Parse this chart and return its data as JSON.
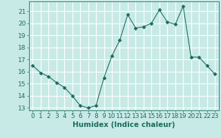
{
  "x": [
    0,
    1,
    2,
    3,
    4,
    5,
    6,
    7,
    8,
    9,
    10,
    11,
    12,
    13,
    14,
    15,
    16,
    17,
    18,
    19,
    20,
    21,
    22,
    23
  ],
  "y": [
    16.5,
    15.9,
    15.6,
    15.1,
    14.7,
    14.0,
    13.2,
    13.0,
    13.2,
    15.5,
    17.3,
    18.6,
    20.7,
    19.6,
    19.7,
    20.0,
    21.1,
    20.1,
    19.9,
    21.4,
    17.2,
    17.2,
    16.5,
    15.8
  ],
  "line_color": "#1a6b5e",
  "marker": "D",
  "markersize": 2.5,
  "bg_color": "#c8eae6",
  "grid_color": "#ffffff",
  "xlabel": "Humidex (Indice chaleur)",
  "xlabel_fontsize": 7.5,
  "tick_fontsize": 6.5,
  "ylim": [
    12.8,
    21.8
  ],
  "xlim": [
    -0.5,
    23.5
  ],
  "yticks": [
    13,
    14,
    15,
    16,
    17,
    18,
    19,
    20,
    21
  ],
  "xticks": [
    0,
    1,
    2,
    3,
    4,
    5,
    6,
    7,
    8,
    9,
    10,
    11,
    12,
    13,
    14,
    15,
    16,
    17,
    18,
    19,
    20,
    21,
    22,
    23
  ]
}
